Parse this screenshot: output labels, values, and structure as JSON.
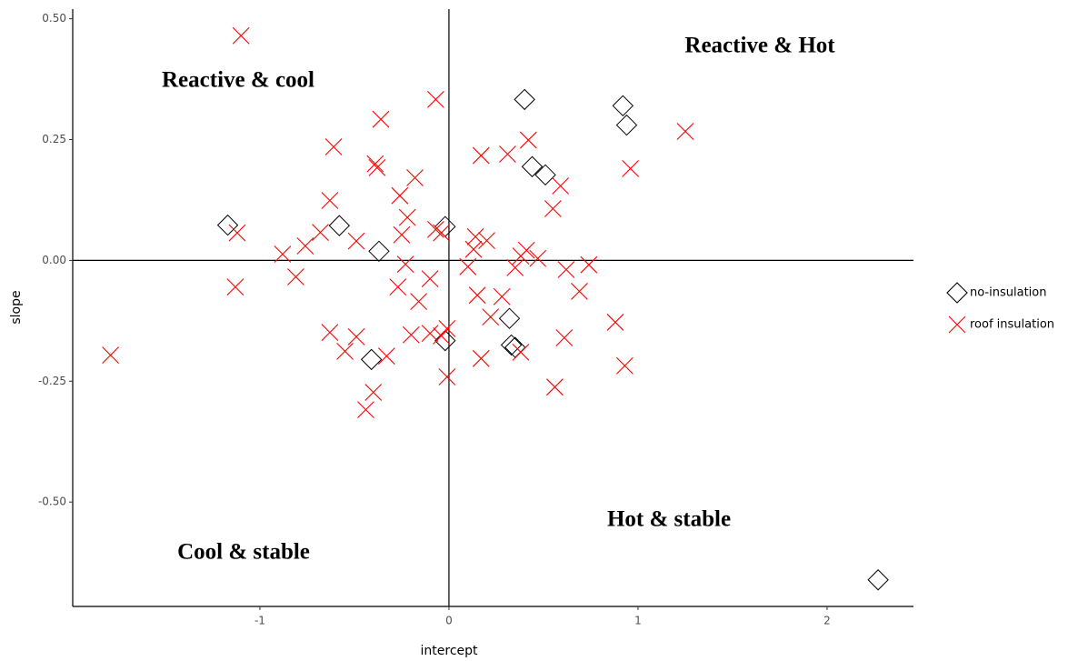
{
  "chart_data": {
    "type": "scatter",
    "x_label": "intercept",
    "y_label": "slope",
    "xlim": [
      -1.99,
      2.457
    ],
    "ylim": [
      -0.716,
      0.52
    ],
    "xticks": [
      -1,
      0,
      1,
      2
    ],
    "yticks": [
      {
        "value": 0.5,
        "label": "0.50"
      },
      {
        "value": 0.25,
        "label": "0.25"
      },
      {
        "value": 0,
        "label": "0.00"
      },
      {
        "value": -0.25,
        "label": "-0.25"
      },
      {
        "value": -0.5,
        "label": "-0.50"
      }
    ],
    "reference_lines": {
      "x": 0,
      "y": 0
    },
    "grid": false,
    "legend": "right",
    "annotations": [
      "Reactive & cool",
      "Reactive & Hot",
      "Hot & stable",
      "Cool & stable"
    ],
    "series": [
      {
        "name": "no-insulation",
        "color": "#000000",
        "marker": "diamond",
        "x": [
          -1.17,
          -0.58,
          -0.37,
          -0.41,
          -0.02,
          -0.02,
          0.4,
          0.44,
          0.51,
          0.92,
          0.94,
          0.32,
          0.33,
          0.35,
          2.27
        ],
        "values": [
          0.073,
          0.072,
          0.019,
          -0.205,
          -0.166,
          0.07,
          0.333,
          0.194,
          0.177,
          0.32,
          0.28,
          -0.12,
          -0.175,
          -0.18,
          -0.661
        ]
      },
      {
        "name": "roof insulation",
        "color": "#ff0000",
        "marker": "cross",
        "x": [
          -1.1,
          -1.79,
          -1.12,
          -1.13,
          -0.88,
          -0.81,
          -0.76,
          -0.68,
          -0.63,
          -0.61,
          -0.63,
          -0.55,
          -0.49,
          -0.49,
          -0.36,
          -0.39,
          -0.38,
          -0.33,
          -0.4,
          -0.44,
          -0.26,
          -0.18,
          -0.22,
          -0.25,
          -0.23,
          -0.27,
          -0.16,
          -0.2,
          -0.1,
          -0.1,
          -0.07,
          -0.07,
          -0.04,
          -0.01,
          -0.01,
          -0.04,
          0.1,
          0.14,
          0.13,
          0.2,
          0.17,
          0.15,
          0.17,
          0.22,
          0.28,
          0.31,
          0.35,
          0.38,
          0.42,
          0.41,
          0.38,
          0.47,
          0.59,
          0.55,
          0.62,
          0.69,
          0.61,
          0.56,
          0.74,
          0.88,
          0.93,
          0.96,
          1.25
        ],
        "values": [
          0.465,
          -0.196,
          0.057,
          -0.055,
          0.013,
          -0.034,
          0.03,
          0.058,
          0.124,
          0.235,
          -0.149,
          -0.188,
          -0.158,
          0.04,
          0.292,
          0.2,
          0.192,
          -0.198,
          -0.273,
          -0.309,
          0.134,
          0.171,
          0.089,
          0.053,
          -0.008,
          -0.055,
          -0.085,
          -0.154,
          -0.038,
          -0.151,
          0.333,
          0.064,
          0.057,
          -0.141,
          -0.241,
          -0.156,
          -0.013,
          0.049,
          0.023,
          0.041,
          0.217,
          -0.072,
          -0.203,
          -0.117,
          -0.075,
          0.22,
          -0.015,
          -0.19,
          0.249,
          0.021,
          0.009,
          0.004,
          0.154,
          0.107,
          -0.019,
          -0.064,
          -0.16,
          -0.262,
          -0.009,
          -0.128,
          -0.218,
          0.19,
          0.267
        ]
      }
    ]
  }
}
